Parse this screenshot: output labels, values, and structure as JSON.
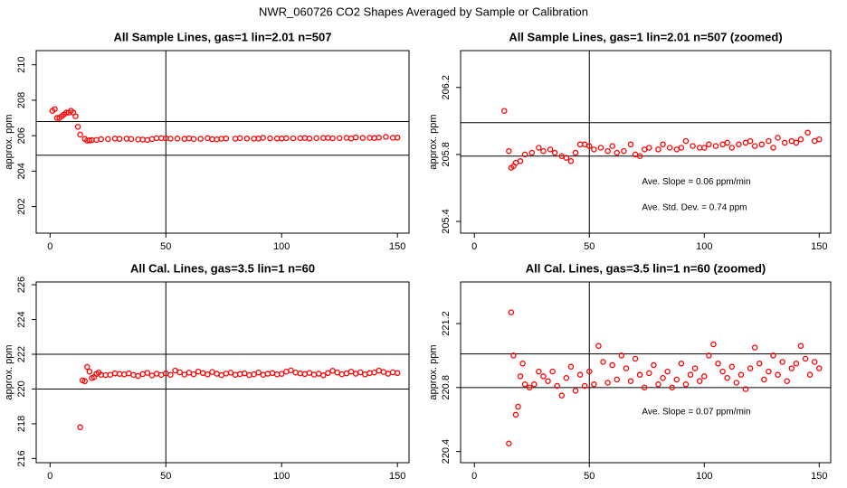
{
  "title": "NWR_060726  CO2 Shapes Averaged by Sample or Calibration",
  "chart_data": [
    {
      "type": "scatter",
      "title": "All Sample Lines, gas=1 lin=2.01 n=507",
      "ylabel": "approx. ppm",
      "color": "#ff0000",
      "xlim": [
        -6,
        155
      ],
      "xticks": [
        0,
        50,
        100,
        150
      ],
      "ylim": [
        200.5,
        210.8
      ],
      "yticks": [
        202,
        204,
        206,
        208,
        210
      ],
      "vlines": [
        50
      ],
      "hlines": [
        206.8,
        204.9
      ],
      "x": [
        1,
        2,
        3,
        4,
        5,
        6,
        7,
        8,
        9,
        10,
        11,
        12,
        13,
        15,
        16,
        17,
        18,
        20,
        22,
        25,
        28,
        30,
        33,
        35,
        38,
        40,
        42,
        44,
        46,
        48,
        50,
        52,
        55,
        58,
        60,
        62,
        65,
        68,
        70,
        72,
        74,
        76,
        80,
        82,
        85,
        88,
        90,
        92,
        95,
        98,
        100,
        102,
        105,
        108,
        110,
        112,
        115,
        118,
        120,
        122,
        125,
        128,
        130,
        132,
        135,
        138,
        140,
        142,
        145,
        148,
        150
      ],
      "values": [
        207.4,
        207.5,
        207.0,
        207.0,
        207.1,
        207.2,
        207.3,
        207.3,
        207.4,
        207.3,
        207.1,
        206.5,
        206.06,
        205.82,
        205.72,
        205.73,
        205.75,
        205.76,
        205.8,
        205.81,
        205.84,
        205.82,
        205.83,
        205.81,
        205.79,
        205.78,
        205.76,
        205.81,
        205.86,
        205.86,
        205.85,
        205.83,
        205.84,
        205.82,
        205.85,
        205.81,
        205.82,
        205.86,
        205.8,
        205.79,
        205.83,
        205.84,
        205.83,
        205.86,
        205.84,
        205.83,
        205.84,
        205.88,
        205.85,
        205.84,
        205.84,
        205.86,
        205.85,
        205.86,
        205.87,
        205.84,
        205.86,
        205.87,
        205.88,
        205.85,
        205.86,
        205.88,
        205.84,
        205.9,
        205.87,
        205.88,
        205.87,
        205.89,
        205.93,
        205.88,
        205.89
      ]
    },
    {
      "type": "scatter",
      "title": "All Sample Lines, gas=1 lin=2.01 n=507 (zoomed)",
      "ylabel": "approx. ppm",
      "color": "#ff0000",
      "xlim": [
        -6,
        155
      ],
      "xticks": [
        0,
        50,
        100,
        150
      ],
      "ylim": [
        205.33,
        206.42
      ],
      "yticks": [
        205.4,
        205.8,
        206.2
      ],
      "vlines": [
        50
      ],
      "hlines": [
        205.99,
        205.79
      ],
      "annotations": [
        "Ave. Slope =  0.06  ppm/min",
        "Ave. Std. Dev. =  0.74  ppm"
      ],
      "x": [
        13,
        15,
        16,
        17,
        18,
        20,
        22,
        25,
        28,
        30,
        33,
        35,
        38,
        40,
        42,
        44,
        46,
        48,
        50,
        52,
        55,
        58,
        60,
        62,
        65,
        68,
        70,
        72,
        74,
        76,
        80,
        82,
        85,
        88,
        90,
        92,
        95,
        98,
        100,
        102,
        105,
        108,
        110,
        112,
        115,
        118,
        120,
        122,
        125,
        128,
        130,
        132,
        135,
        138,
        140,
        142,
        145,
        148,
        150
      ],
      "values": [
        206.06,
        205.82,
        205.72,
        205.73,
        205.75,
        205.76,
        205.8,
        205.81,
        205.84,
        205.82,
        205.83,
        205.81,
        205.79,
        205.78,
        205.76,
        205.81,
        205.86,
        205.86,
        205.85,
        205.83,
        205.84,
        205.82,
        205.85,
        205.81,
        205.82,
        205.86,
        205.8,
        205.79,
        205.83,
        205.84,
        205.83,
        205.86,
        205.84,
        205.83,
        205.84,
        205.88,
        205.85,
        205.84,
        205.84,
        205.86,
        205.85,
        205.86,
        205.87,
        205.84,
        205.86,
        205.87,
        205.88,
        205.85,
        205.86,
        205.88,
        205.84,
        205.9,
        205.87,
        205.88,
        205.87,
        205.89,
        205.93,
        205.88,
        205.89
      ]
    },
    {
      "type": "scatter",
      "title": "All Cal. Lines, gas=3.5 lin=1 n=60",
      "ylabel": "approx. ppm",
      "color": "#ff0000",
      "xlim": [
        -6,
        155
      ],
      "xticks": [
        0,
        50,
        100,
        150
      ],
      "ylim": [
        215.76,
        226.16
      ],
      "yticks": [
        216,
        218,
        220,
        222,
        224,
        226
      ],
      "vlines": [
        50
      ],
      "hlines": [
        222,
        220
      ],
      "x": [
        13,
        14,
        15,
        16,
        17,
        18,
        19,
        20,
        21,
        22,
        24,
        26,
        28,
        30,
        32,
        34,
        36,
        38,
        40,
        42,
        44,
        46,
        48,
        50,
        52,
        54,
        56,
        58,
        60,
        62,
        64,
        66,
        68,
        70,
        72,
        74,
        76,
        78,
        80,
        82,
        84,
        86,
        88,
        90,
        92,
        94,
        96,
        98,
        100,
        102,
        104,
        106,
        108,
        110,
        112,
        114,
        116,
        118,
        120,
        122,
        124,
        126,
        128,
        130,
        132,
        134,
        136,
        138,
        140,
        142,
        144,
        146,
        148,
        150
      ],
      "values": [
        217.8,
        220.5,
        220.45,
        221.27,
        221.0,
        220.63,
        220.68,
        220.87,
        220.95,
        220.82,
        220.8,
        220.82,
        220.9,
        220.87,
        220.84,
        220.9,
        220.81,
        220.75,
        220.86,
        220.93,
        220.78,
        220.88,
        220.81,
        220.9,
        220.82,
        221.06,
        220.96,
        220.83,
        220.94,
        220.85,
        221.0,
        220.92,
        220.84,
        220.98,
        220.88,
        220.8,
        220.89,
        220.94,
        220.82,
        220.86,
        220.9,
        220.8,
        220.85,
        220.95,
        220.82,
        220.88,
        220.92,
        220.84,
        220.87,
        221.0,
        221.07,
        220.95,
        220.9,
        220.86,
        220.93,
        220.83,
        220.88,
        220.79,
        220.92,
        221.05,
        220.95,
        220.85,
        220.9,
        221.0,
        220.88,
        220.96,
        220.84,
        220.92,
        220.95,
        221.06,
        220.98,
        220.88,
        220.96,
        220.92
      ]
    },
    {
      "type": "scatter",
      "title": "All Cal. Lines, gas=3.5 lin=1 n=60 (zoomed)",
      "ylabel": "approx. ppm",
      "color": "#ff0000",
      "xlim": [
        -6,
        155
      ],
      "xticks": [
        0,
        50,
        100,
        150
      ],
      "ylim": [
        220.33,
        221.46
      ],
      "yticks": [
        220.4,
        220.8,
        221.2
      ],
      "vlines": [
        50
      ],
      "hlines": [
        221.01,
        220.8
      ],
      "annotations": [
        "Ave. Slope =  0.07  ppm/min"
      ],
      "x": [
        15,
        16,
        17,
        18,
        19,
        20,
        21,
        22,
        24,
        26,
        28,
        30,
        32,
        34,
        36,
        38,
        40,
        42,
        44,
        46,
        48,
        50,
        52,
        54,
        56,
        58,
        60,
        62,
        64,
        66,
        68,
        70,
        72,
        74,
        76,
        78,
        80,
        82,
        84,
        86,
        88,
        90,
        92,
        94,
        96,
        98,
        100,
        102,
        104,
        106,
        108,
        110,
        112,
        114,
        116,
        118,
        120,
        122,
        124,
        126,
        128,
        130,
        132,
        134,
        136,
        138,
        140,
        142,
        144,
        146,
        148,
        150
      ],
      "values": [
        220.45,
        221.27,
        221.0,
        220.63,
        220.68,
        220.87,
        220.95,
        220.82,
        220.8,
        220.82,
        220.9,
        220.87,
        220.84,
        220.9,
        220.81,
        220.75,
        220.86,
        220.93,
        220.78,
        220.88,
        220.81,
        220.9,
        220.82,
        221.06,
        220.96,
        220.83,
        220.94,
        220.85,
        221.0,
        220.92,
        220.84,
        220.98,
        220.88,
        220.8,
        220.89,
        220.94,
        220.82,
        220.86,
        220.9,
        220.8,
        220.85,
        220.95,
        220.82,
        220.88,
        220.92,
        220.84,
        220.87,
        221.0,
        221.07,
        220.95,
        220.9,
        220.86,
        220.93,
        220.83,
        220.88,
        220.79,
        220.92,
        221.05,
        220.95,
        220.85,
        220.9,
        221.0,
        220.88,
        220.96,
        220.84,
        220.92,
        220.95,
        221.06,
        220.98,
        220.88,
        220.96,
        220.92
      ]
    }
  ]
}
